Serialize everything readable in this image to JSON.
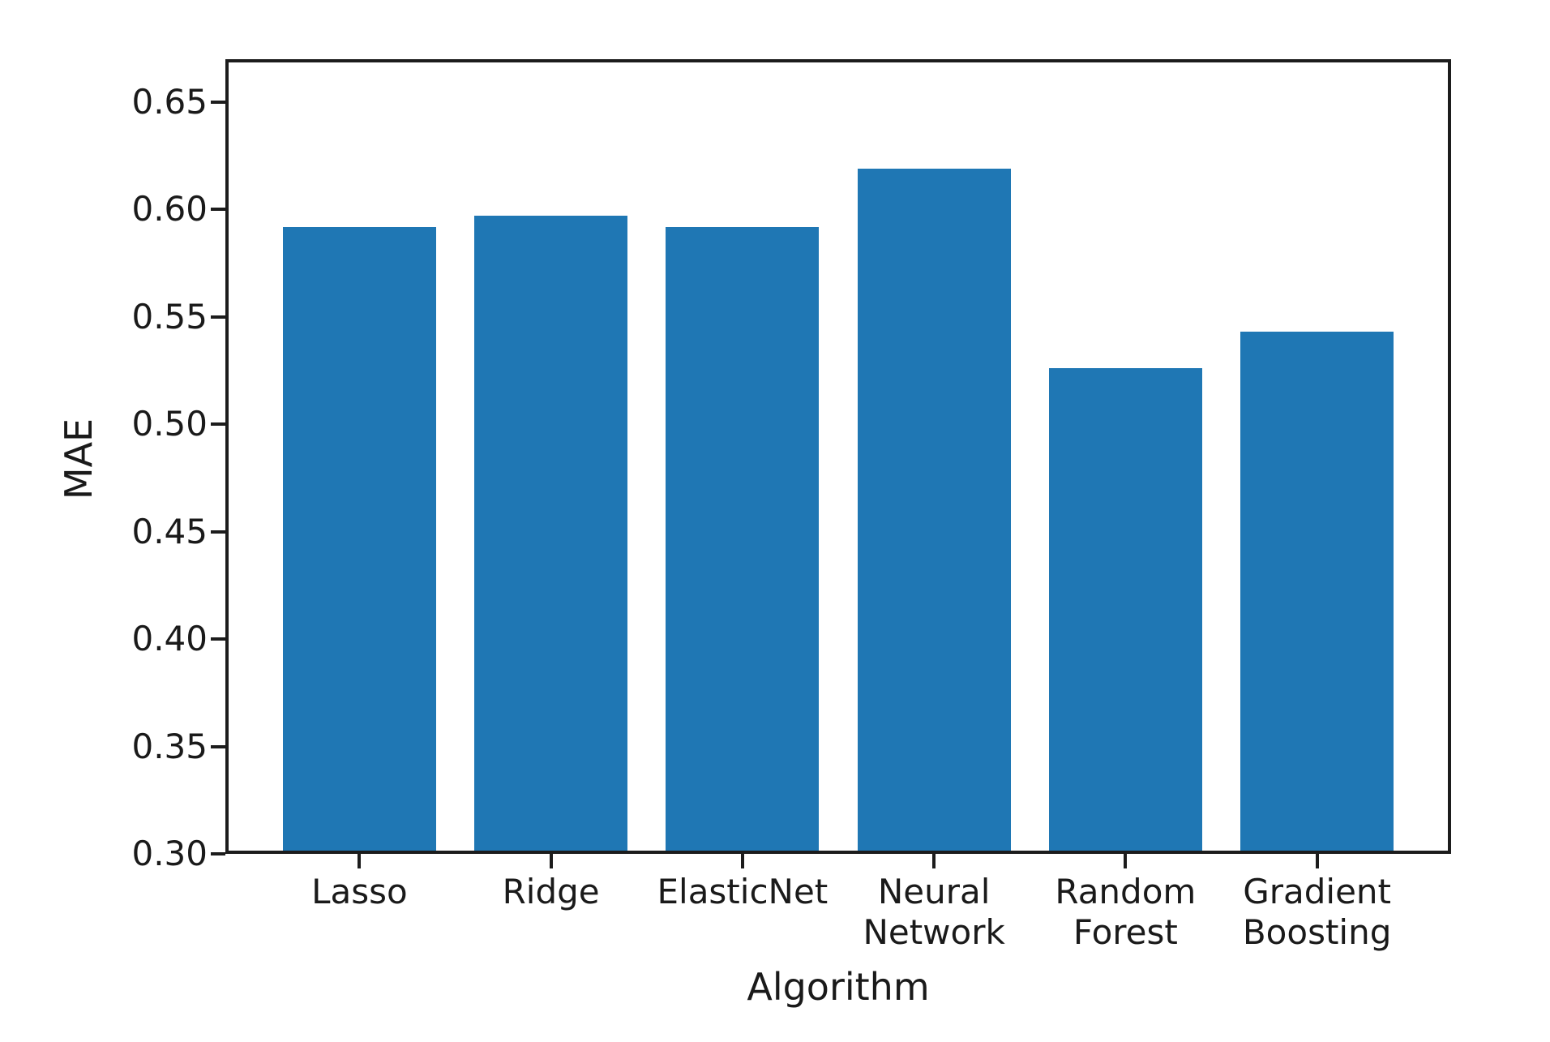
{
  "chart_data": {
    "type": "bar",
    "title": "",
    "xlabel": "Algorithm",
    "ylabel": "MAE",
    "categories": [
      "Lasso",
      "Ridge",
      "ElasticNet",
      "Neural\nNetwork",
      "Random\nForest",
      "Gradient\nBoosting"
    ],
    "values": [
      0.592,
      0.597,
      0.592,
      0.619,
      0.526,
      0.543
    ],
    "bar_color": "#1f77b4",
    "axis_color": "#1c1c1c",
    "text_color": "#1a1a1a",
    "background_color": "#ffffff",
    "ylim": [
      0.3,
      0.67
    ],
    "xlim": [
      -0.7,
      5.7
    ],
    "bar_width": 0.8,
    "yticks": [
      0.3,
      0.35,
      0.4,
      0.45,
      0.5,
      0.55,
      0.6,
      0.65
    ],
    "ytick_labels": [
      "0.30",
      "0.35",
      "0.40",
      "0.45",
      "0.50",
      "0.55",
      "0.60",
      "0.65"
    ],
    "grid": false,
    "legend": "none"
  }
}
